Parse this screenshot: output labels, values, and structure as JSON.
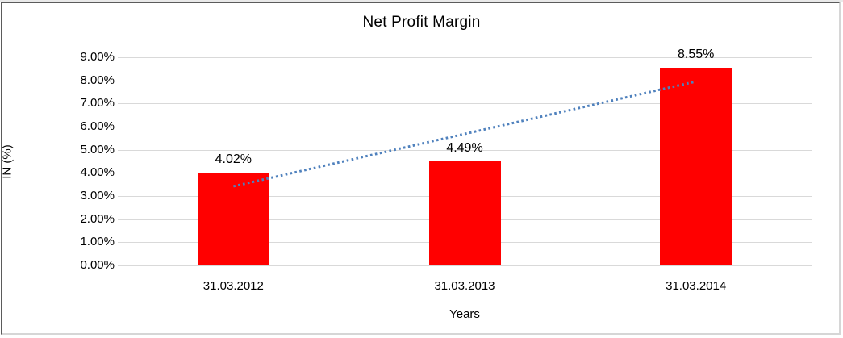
{
  "chart_data": {
    "type": "bar",
    "title": "Net Profit Margin",
    "xlabel": "Years",
    "ylabel": "IN (%)",
    "categories": [
      "31.03.2012",
      "31.03.2013",
      "31.03.2014"
    ],
    "values": [
      4.02,
      4.49,
      8.55
    ],
    "data_labels": [
      "4.02%",
      "4.49%",
      "8.55%"
    ],
    "ylim": [
      0,
      9
    ],
    "ytick_step": 1,
    "ytick_labels": [
      "0.00%",
      "1.00%",
      "2.00%",
      "3.00%",
      "4.00%",
      "5.00%",
      "6.00%",
      "7.00%",
      "8.00%",
      "9.00%"
    ],
    "grid": true,
    "legend": "none",
    "bar_color": "#ff0000",
    "gridline_color": "#d9d9d9",
    "trendline": {
      "type": "linear",
      "style": "dotted",
      "color": "#4f81bd",
      "start_value": 3.42,
      "end_value": 7.95
    }
  }
}
